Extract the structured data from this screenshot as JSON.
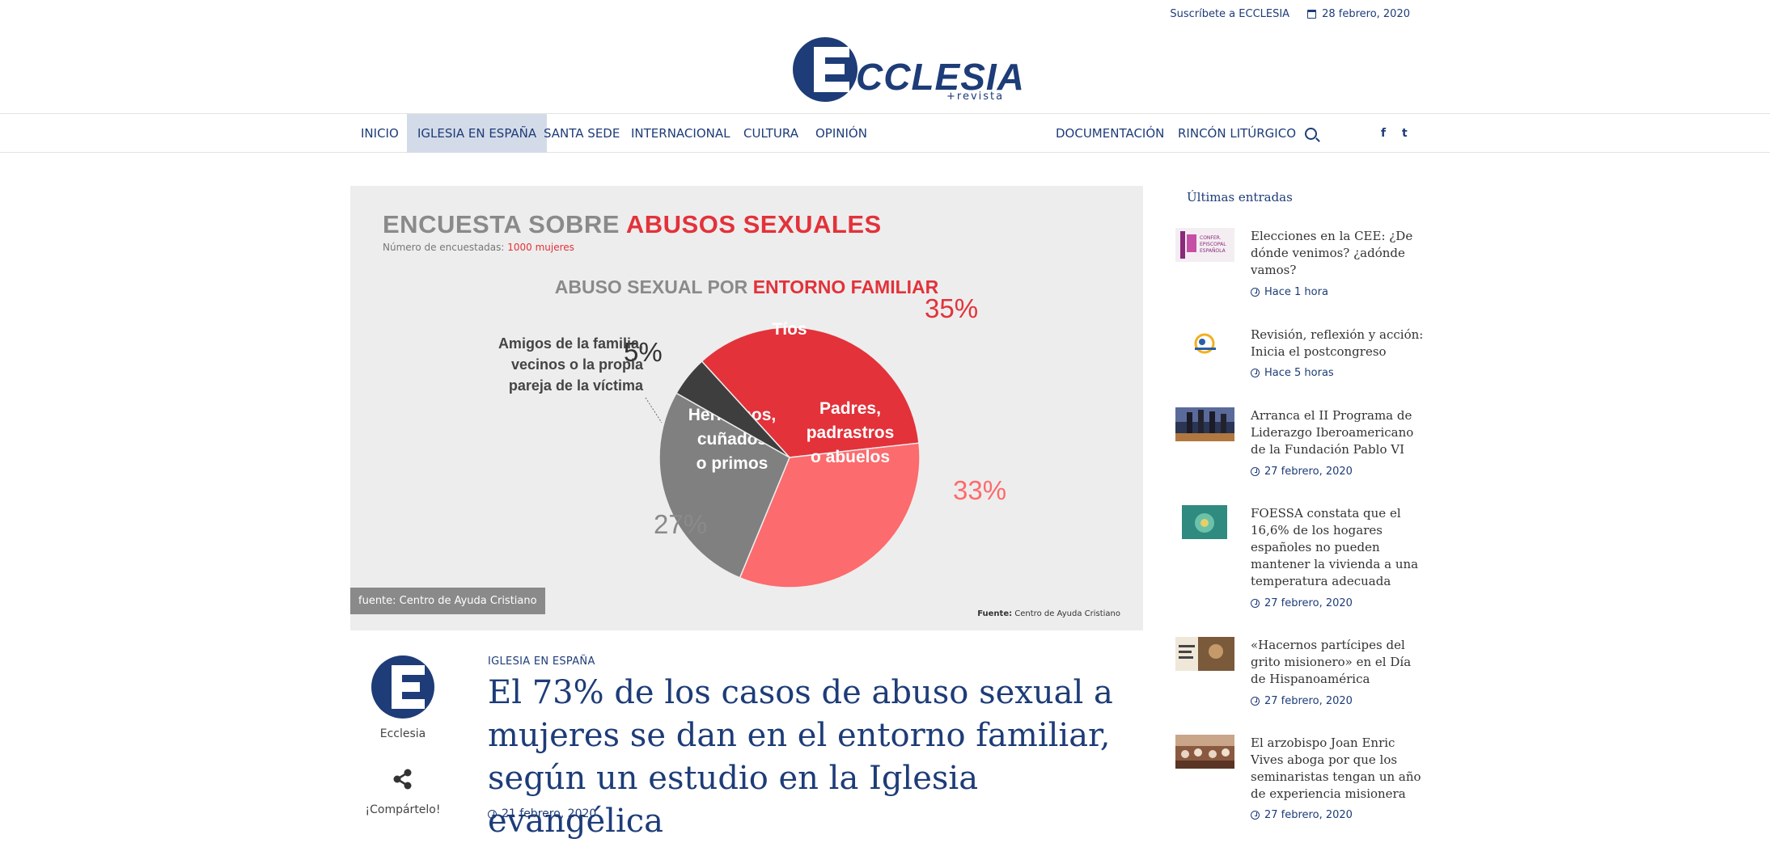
{
  "topbar": {
    "subscribe": "Suscríbete a ECCLESIA",
    "date": "28 febrero, 2020"
  },
  "logo": {
    "text": "CCLESIA",
    "sub": "+revista"
  },
  "nav": {
    "left": [
      "INICIO",
      "IGLESIA EN ESPAÑA",
      "SANTA SEDE",
      "INTERNACIONAL",
      "CULTURA",
      "OPINIÓN"
    ],
    "right": [
      "DOCUMENTACIÓN",
      "RINCÓN LITÚRGICO"
    ],
    "active": "IGLESIA EN ESPAÑA",
    "social": [
      "f",
      "t"
    ]
  },
  "hero": {
    "title_a": "ENCUESTA SOBRE ",
    "title_b": "ABUSOS SEXUALES",
    "sub_a": "Número de encuestadas: ",
    "sub_b": "1000 mujeres",
    "chart_title_a": "ABUSO SEXUAL POR ",
    "chart_title_b": "ENTORNO FAMILIAR",
    "side_label": "Amigos de la familia, vecinos o la propia pareja de la víctima",
    "caption": "fuente: Centro de Ayuda Cristiano",
    "fuente_label": "Fuente:",
    "fuente_text": " Centro de Ayuda Cristiano"
  },
  "chart_data": {
    "type": "pie",
    "title": "ABUSO SEXUAL POR ENTORNO FAMILIAR",
    "categories": [
      "Tíos",
      "Padres, padrastros o abuelos",
      "Hermanos, cuñados o primos",
      "Amigos de la familia, vecinos o la propia pareja de la víctima"
    ],
    "values": [
      35,
      33,
      27,
      5
    ],
    "labels": [
      "35%",
      "33%",
      "27%",
      "5%"
    ],
    "slice_lines": [
      [
        "Tíos"
      ],
      [
        "Padres,",
        "padrastros",
        "o abuelos"
      ],
      [
        "Hermanos,",
        "cuñados",
        "o primos"
      ],
      []
    ],
    "colors": [
      "#e3323a",
      "#fc6b6d",
      "#808080",
      "#3e3e3e"
    ],
    "label_colors": [
      "#e2323a",
      "#fc6b6d",
      "#8a8a8a",
      "#333333"
    ]
  },
  "article": {
    "author": "Ecclesia",
    "share": "¡Compártelo!",
    "category": "IGLESIA EN ESPAÑA",
    "headline": "El 73% de los casos de abuso sexual a mujeres se dan en el entorno familiar, según un estudio en la Iglesia evangélica",
    "date": "21 febrero, 2020"
  },
  "sidebar": {
    "title": "Últimas entradas",
    "items": [
      {
        "title": "Elecciones en la CEE: ¿De dónde venimos? ¿adónde vamos?",
        "time": "Hace 1 hora",
        "thumb": "cee-logo"
      },
      {
        "title": "Revisión, reflexión y acción: Inicia el postcongreso",
        "time": "Hace 5 horas",
        "thumb": "congreso-logo"
      },
      {
        "title": "Arranca el II Programa de Liderazgo Iberoamericano de la Fundación Pablo VI",
        "time": "27 febrero, 2020",
        "thumb": "towers-photo"
      },
      {
        "title": "FOESSA constata que el 16,6% de los hogares españoles no pueden mantener la vivienda a una temperatura adecuada",
        "time": "27 febrero, 2020",
        "thumb": "foessa-photo"
      },
      {
        "title": "«Hacernos partícipes del grito misionero» en el Día de Hispanoamérica",
        "time": "27 febrero, 2020",
        "thumb": "poster-photo"
      },
      {
        "title": "El arzobispo Joan Enric Vives aboga por que los seminaristas tengan un año de experiencia misionera",
        "time": "27 febrero, 2020",
        "thumb": "meeting-photo"
      }
    ]
  }
}
